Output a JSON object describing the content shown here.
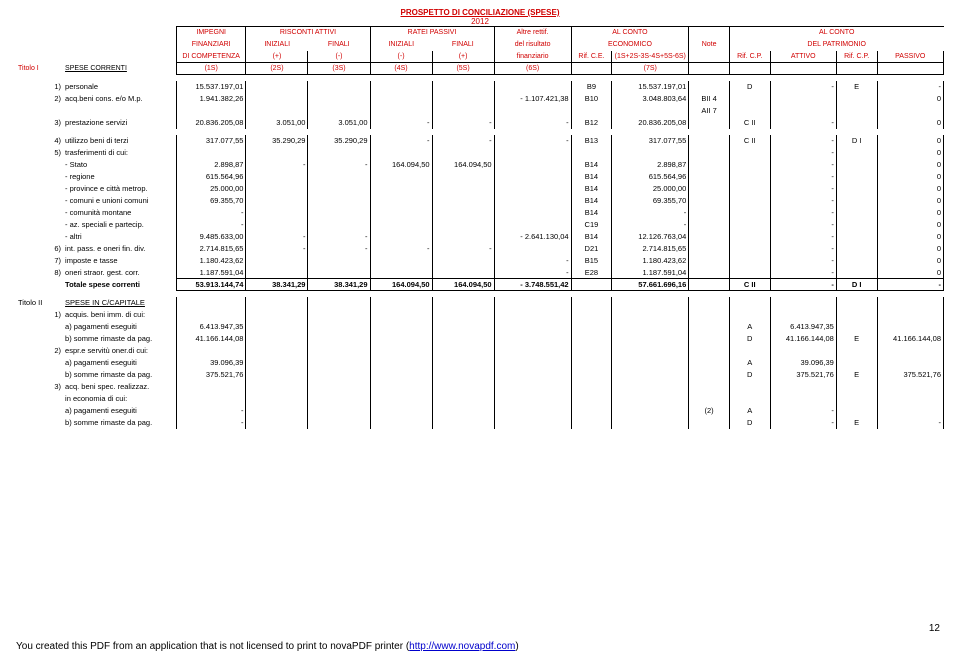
{
  "title": "PROSPETTO  DI  CONCILIAZIONE   (SPESE)",
  "year": "2012",
  "headers": {
    "r1": [
      "IMPEGNI",
      "RISCONTI ATTIVI",
      "",
      "RATEI PASSIVI",
      "",
      "Altre rettif.",
      "",
      "AL CONTO",
      "",
      "",
      "",
      "AL CONTO",
      ""
    ],
    "r2": [
      "FINANZIARI",
      "INIZIALI",
      "FINALI",
      "INIZIALI",
      "FINALI",
      "del risultato",
      "",
      "ECONOMICO",
      "Note",
      "",
      "",
      "DEL PATRIMONIO",
      ""
    ],
    "r3": [
      "DI COMPETENZA",
      "(+)",
      "(-)",
      "(-)",
      "(+)",
      "finanziario",
      "Rif. C.E.",
      "(1S+2S-3S-4S+5S-6S)",
      "",
      "Rif. C.P.",
      "ATTIVO",
      "Rif. C.P.",
      "PASSIVO"
    ],
    "r4": [
      "(1S)",
      "(2S)",
      "(3S)",
      "(4S)",
      "(5S)",
      "(6S)",
      "",
      "(7S)",
      "",
      "",
      "",
      "",
      ""
    ]
  },
  "titolo1_label": "Titolo I",
  "titolo1_text": "SPESE CORRENTI",
  "rows_t1": [
    {
      "n": "1)",
      "label": "personale",
      "c": [
        "15.537.197,01",
        "",
        "",
        "",
        "",
        "",
        "B9",
        "15.537.197,01",
        "",
        "D",
        "-",
        "E",
        "-"
      ]
    },
    {
      "n": "2)",
      "label": "acq.beni cons. e/o M.p.",
      "c": [
        "1.941.382,26",
        "",
        "",
        "",
        "",
        "-  1.107.421,38",
        "B10",
        "3.048.803,64",
        "BII 4",
        "",
        "",
        "",
        "0"
      ]
    },
    {
      "n": "",
      "label": "",
      "c": [
        "",
        "",
        "",
        "",
        "",
        "",
        "",
        "",
        "AII 7",
        "",
        "",
        "",
        ""
      ]
    },
    {
      "n": "3)",
      "label": "prestazione servizi",
      "c": [
        "20.836.205,08",
        "3.051,00",
        "3.051,00",
        "-",
        "-",
        "-",
        "B12",
        "20.836.205,08",
        "",
        "C II",
        "-",
        "",
        "0"
      ]
    }
  ],
  "rows_t1b": [
    {
      "n": "4)",
      "label": "utilizzo beni di terzi",
      "c": [
        "317.077,55",
        "35.290,29",
        "35.290,29",
        "-",
        "-",
        "-",
        "B13",
        "317.077,55",
        "",
        "C II",
        "-",
        "D I",
        "0"
      ]
    },
    {
      "n": "5)",
      "label": "trasferimenti di cui:",
      "c": [
        "",
        "",
        "",
        "",
        "",
        "",
        "",
        "",
        "",
        "",
        "-",
        "",
        "0"
      ]
    },
    {
      "n": "",
      "label": "- Stato",
      "c": [
        "2.898,87",
        "-",
        "-",
        "164.094,50",
        "164.094,50",
        "",
        "B14",
        "2.898,87",
        "",
        "",
        "-",
        "",
        "0"
      ]
    },
    {
      "n": "",
      "label": "- regione",
      "c": [
        "615.564,96",
        "",
        "",
        "",
        "",
        "",
        "B14",
        "615.564,96",
        "",
        "",
        "-",
        "",
        "0"
      ]
    },
    {
      "n": "",
      "label": "- province e città metrop.",
      "c": [
        "25.000,00",
        "",
        "",
        "",
        "",
        "",
        "B14",
        "25.000,00",
        "",
        "",
        "-",
        "",
        "0"
      ]
    },
    {
      "n": "",
      "label": "- comuni e unioni comuni",
      "c": [
        "69.355,70",
        "",
        "",
        "",
        "",
        "",
        "B14",
        "69.355,70",
        "",
        "",
        "-",
        "",
        "0"
      ]
    },
    {
      "n": "",
      "label": "- comunità montane",
      "c": [
        "-",
        "",
        "",
        "",
        "",
        "",
        "B14",
        "-",
        "",
        "",
        "-",
        "",
        "0"
      ]
    },
    {
      "n": "",
      "label": "- az. speciali e partecip.",
      "c": [
        "-",
        "",
        "",
        "",
        "",
        "",
        "C19",
        "-",
        "",
        "",
        "-",
        "",
        "0"
      ]
    },
    {
      "n": "",
      "label": "- altri",
      "c": [
        "9.485.633,00",
        "-",
        "-",
        "",
        "",
        "-  2.641.130,04",
        "B14",
        "12.126.763,04",
        "",
        "",
        "-",
        "",
        "0"
      ]
    },
    {
      "n": "6)",
      "label": "int. pass. e oneri fin. div.",
      "c": [
        "2.714.815,65",
        "-",
        "-",
        "-",
        "-",
        "",
        "D21",
        "2.714.815,65",
        "",
        "",
        "-",
        "",
        "0"
      ]
    },
    {
      "n": "7)",
      "label": "imposte e tasse",
      "c": [
        "1.180.423,62",
        "",
        "",
        "",
        "",
        "-",
        "B15",
        "1.180.423,62",
        "",
        "",
        "-",
        "",
        "0"
      ]
    },
    {
      "n": "8)",
      "label": "oneri straor. gest. corr.",
      "c": [
        "1.187.591,04",
        "",
        "",
        "",
        "",
        "-",
        "E28",
        "1.187.591,04",
        "",
        "",
        "-",
        "",
        "0"
      ]
    }
  ],
  "total_row": {
    "label": "Totale spese correnti",
    "c": [
      "53.913.144,74",
      "38.341,29",
      "38.341,29",
      "164.094,50",
      "164.094,50",
      "-  3.748.551,42",
      "",
      "57.661.696,16",
      "",
      "C II",
      "-",
      "D I",
      "-"
    ]
  },
  "titolo2_label": "Titolo II",
  "titolo2_text": "SPESE IN C/CAPITALE",
  "rows_t2": [
    {
      "n": "1)",
      "label": "acquis. beni imm. di cui:",
      "c": [
        "",
        "",
        "",
        "",
        "",
        "",
        "",
        "",
        "",
        "",
        "",
        "",
        ""
      ]
    },
    {
      "n": "",
      "label": "a) pagamenti eseguiti",
      "c": [
        "6.413.947,35",
        "",
        "",
        "",
        "",
        "",
        "",
        "",
        "",
        "A",
        "6.413.947,35",
        "",
        ""
      ]
    },
    {
      "n": "",
      "label": "b) somme rimaste da pag.",
      "c": [
        "41.166.144,08",
        "",
        "",
        "",
        "",
        "",
        "",
        "",
        "",
        "D",
        "41.166.144,08",
        "E",
        "41.166.144,08"
      ]
    },
    {
      "n": "2)",
      "label": "espr.e servitù oner.di cui:",
      "c": [
        "",
        "",
        "",
        "",
        "",
        "",
        "",
        "",
        "",
        "",
        "",
        "",
        ""
      ]
    },
    {
      "n": "",
      "label": "a) pagamenti eseguiti",
      "c": [
        "39.096,39",
        "",
        "",
        "",
        "",
        "",
        "",
        "",
        "",
        "A",
        "39.096,39",
        "",
        ""
      ]
    },
    {
      "n": "",
      "label": "b) somme rimaste da pag.",
      "c": [
        "375.521,76",
        "",
        "",
        "",
        "",
        "",
        "",
        "",
        "",
        "D",
        "375.521,76",
        "E",
        "375.521,76"
      ]
    },
    {
      "n": "3)",
      "label": "acq. beni spec. realizzaz.",
      "c": [
        "",
        "",
        "",
        "",
        "",
        "",
        "",
        "",
        "",
        "",
        "",
        "",
        ""
      ]
    },
    {
      "n": "",
      "label": "in economia di cui:",
      "c": [
        "",
        "",
        "",
        "",
        "",
        "",
        "",
        "",
        "",
        "",
        "",
        "",
        ""
      ]
    },
    {
      "n": "",
      "label": "a) pagamenti eseguiti",
      "c": [
        "-",
        "",
        "",
        "",
        "",
        "",
        "",
        "",
        "(2)",
        "A",
        "-",
        "",
        ""
      ]
    },
    {
      "n": "",
      "label": "b) somme rimaste da pag.",
      "c": [
        "-",
        "",
        "",
        "",
        "",
        "",
        "",
        "",
        "",
        "D",
        "-",
        "E",
        "-"
      ]
    }
  ],
  "footer": "You created this PDF from an application that is not licensed to print to novaPDF printer (",
  "footer_link": "http://www.novapdf.com",
  "page": "12"
}
